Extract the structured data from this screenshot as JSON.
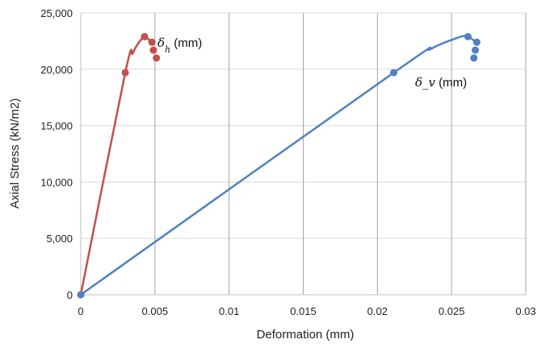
{
  "chart_data": {
    "type": "scatter",
    "xlabel": "Deformation (mm)",
    "ylabel": "Axial Stress (kN/m2)",
    "xlim": [
      0,
      0.03
    ],
    "ylim": [
      0,
      25000
    ],
    "x_ticks": [
      0,
      0.005,
      0.01,
      0.015,
      0.02,
      0.025,
      0.03
    ],
    "x_tick_labels": [
      "0",
      "0.005",
      "0.01",
      "0.015",
      "0.02",
      "0.025",
      "0.03"
    ],
    "y_ticks": [
      0,
      5000,
      10000,
      15000,
      20000,
      25000
    ],
    "y_tick_labels": [
      "0",
      "5,000",
      "10,000",
      "15,000",
      "20,000",
      "25,000"
    ],
    "grid": "vertical",
    "series": [
      {
        "label": {
          "symbol": "δ",
          "subscript": "h",
          "text": " (mm)"
        },
        "color": "#c0504d",
        "curve": [
          [
            0,
            0
          ],
          [
            0.003,
            19700
          ],
          [
            0.0035,
            21400
          ],
          [
            0.0039,
            22350
          ],
          [
            0.0043,
            22850
          ],
          [
            0.0047,
            22500
          ]
        ],
        "points": [
          [
            0,
            0
          ],
          [
            0.003,
            19700
          ],
          [
            0.0043,
            22900
          ],
          [
            0.0048,
            22400
          ],
          [
            0.0049,
            21700
          ],
          [
            0.0051,
            21000
          ]
        ]
      },
      {
        "label": {
          "symbol": "δ",
          "subscript": "_v",
          "text": " (mm)"
        },
        "color": "#4f81bd",
        "curve": [
          [
            0,
            0
          ],
          [
            0.0211,
            19700
          ],
          [
            0.0236,
            21800
          ],
          [
            0.0252,
            22700
          ],
          [
            0.026,
            22950
          ],
          [
            0.0266,
            22450
          ]
        ],
        "points": [
          [
            0,
            0
          ],
          [
            0.0211,
            19700
          ],
          [
            0.0261,
            22900
          ],
          [
            0.0267,
            22400
          ],
          [
            0.0266,
            21700
          ],
          [
            0.0265,
            21000
          ]
        ]
      }
    ]
  }
}
